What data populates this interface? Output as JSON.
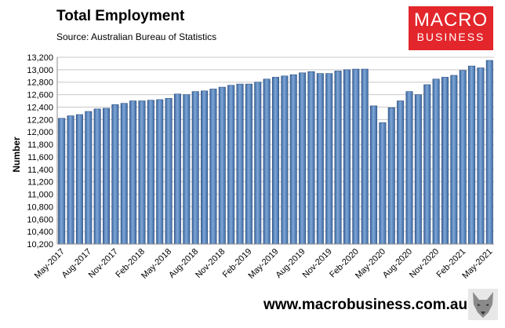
{
  "header": {
    "title": "Total Employment",
    "subtitle": "Source: Australian Bureau of Statistics"
  },
  "logo": {
    "line1": "MACRO",
    "line2": "BUSINESS",
    "color": "#e3262b"
  },
  "footer": {
    "url": "www.macrobusiness.com.au",
    "emblem_icon": "wolf-head-icon"
  },
  "chart_data": {
    "type": "bar",
    "title": "Total Employment",
    "ylabel": "Number",
    "ylim": [
      10200,
      13200
    ],
    "yticks": [
      "10,200",
      "10,400",
      "10,600",
      "10,800",
      "11,000",
      "11,200",
      "11,400",
      "11,600",
      "11,800",
      "12,000",
      "12,200",
      "12,400",
      "12,600",
      "12,800",
      "13,000",
      "13,200"
    ],
    "tick_labels": [
      "May-2017",
      "Aug-2017",
      "Nov-2017",
      "Feb-2018",
      "May-2018",
      "Aug-2018",
      "Nov-2018",
      "Feb-2019",
      "May-2019",
      "Aug-2019",
      "Nov-2019",
      "Feb-2020",
      "May-2020",
      "Aug-2020",
      "Nov-2020",
      "Feb-2021",
      "May-2021"
    ],
    "bar_color": "#4f81bd",
    "grid": "horizontal",
    "legend": "none",
    "categories": [
      "May-2017",
      "Jun-2017",
      "Jul-2017",
      "Aug-2017",
      "Sep-2017",
      "Oct-2017",
      "Nov-2017",
      "Dec-2017",
      "Jan-2018",
      "Feb-2018",
      "Mar-2018",
      "Apr-2018",
      "May-2018",
      "Jun-2018",
      "Jul-2018",
      "Aug-2018",
      "Sep-2018",
      "Oct-2018",
      "Nov-2018",
      "Dec-2018",
      "Jan-2019",
      "Feb-2019",
      "Mar-2019",
      "Apr-2019",
      "May-2019",
      "Jun-2019",
      "Jul-2019",
      "Aug-2019",
      "Sep-2019",
      "Oct-2019",
      "Nov-2019",
      "Dec-2019",
      "Jan-2020",
      "Feb-2020",
      "Mar-2020",
      "Apr-2020",
      "May-2020",
      "Jun-2020",
      "Jul-2020",
      "Aug-2020",
      "Sep-2020",
      "Oct-2020",
      "Nov-2020",
      "Dec-2020",
      "Jan-2021",
      "Feb-2021",
      "Mar-2021",
      "Apr-2021",
      "May-2021"
    ],
    "values": [
      12220,
      12260,
      12280,
      12330,
      12370,
      12380,
      12440,
      12460,
      12500,
      12500,
      12510,
      12520,
      12540,
      12610,
      12600,
      12650,
      12660,
      12690,
      12720,
      12750,
      12770,
      12770,
      12800,
      12850,
      12880,
      12900,
      12920,
      12950,
      12970,
      12940,
      12940,
      12980,
      13000,
      13010,
      13010,
      12420,
      12150,
      12390,
      12500,
      12650,
      12600,
      12760,
      12850,
      12880,
      12910,
      12990,
      13060,
      13030,
      13150
    ]
  }
}
